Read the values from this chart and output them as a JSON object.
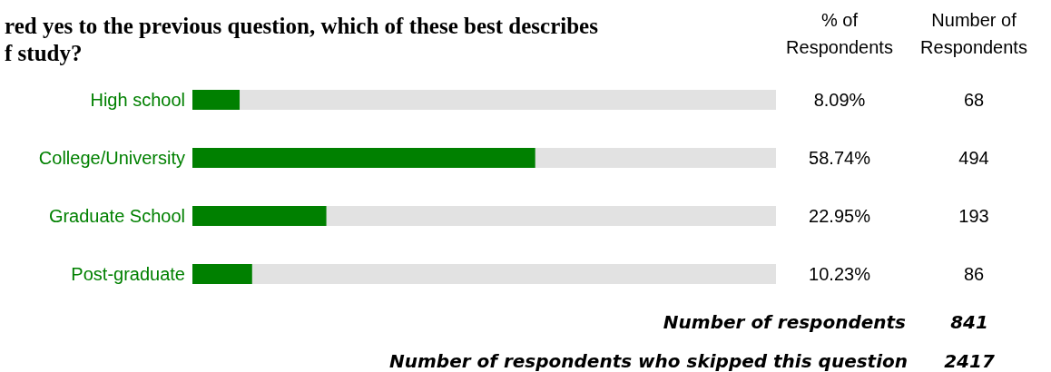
{
  "chart_data": {
    "type": "bar",
    "orientation": "horizontal",
    "title": "red yes to the previous question, which of these best describes\nf study?",
    "categories": [
      "High school",
      "College/University",
      "Graduate School",
      "Post-graduate"
    ],
    "values": [
      8.09,
      58.74,
      22.95,
      10.23
    ],
    "value_labels": [
      "8.09%",
      "58.74%",
      "22.95%",
      "10.23%"
    ],
    "color": "#008000",
    "xlim": [
      0,
      100
    ],
    "tick_labels": "y",
    "annotations": [
      "% of\nRespondents",
      "Number of\nRespondents",
      "Number of respondents",
      "841",
      "Number of respondents who skipped this question",
      "2417",
      "68",
      "494",
      "193",
      "86"
    ]
  }
}
